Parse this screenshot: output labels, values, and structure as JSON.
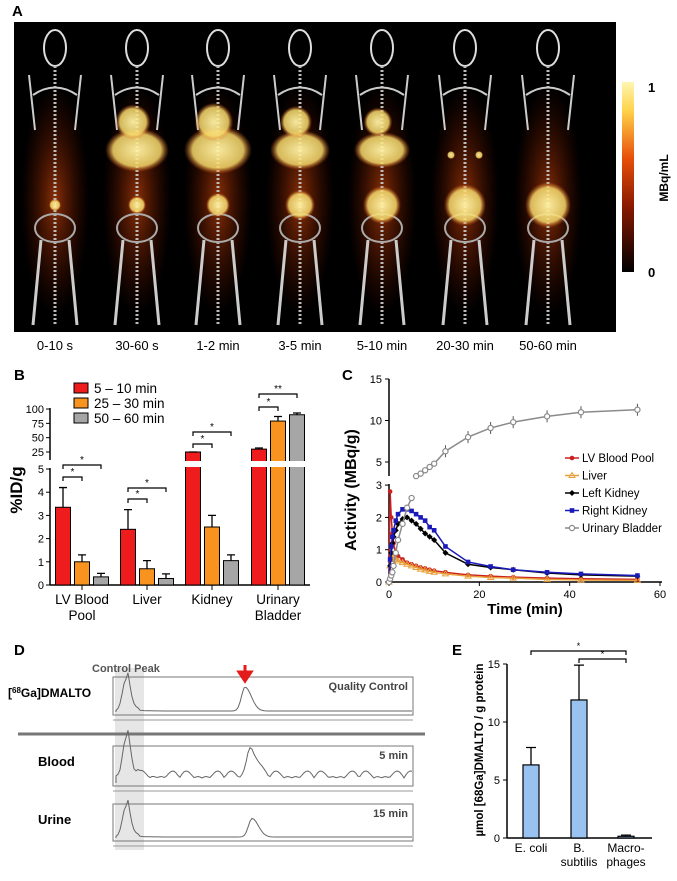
{
  "panels": {
    "a": "A",
    "b": "B",
    "c": "C",
    "d": "D",
    "e": "E"
  },
  "panel_a": {
    "time_labels": [
      "0-10 s",
      "30-60 s",
      "1-2 min",
      "3-5 min",
      "5-10 min",
      "20-30 min",
      "50-60 min"
    ],
    "colorbar": {
      "max": "1",
      "min": "0",
      "unit": "MBq/mL",
      "colors": [
        "#000000",
        "#8b1a00",
        "#e8500a",
        "#ffd34a",
        "#fff6b0"
      ]
    }
  },
  "chart_data": [
    {
      "type": "bar",
      "ylabel": "%ID/g",
      "categories": [
        "LV Blood Pool",
        "Liver",
        "Kidney",
        "Urinary Bladder"
      ],
      "category_lines": [
        [
          "LV Blood",
          "Pool"
        ],
        [
          "Liver"
        ],
        [
          "Kidney"
        ],
        [
          "Urinary",
          "Bladder"
        ]
      ],
      "yticks_lower": [
        "0",
        "1",
        "2",
        "3",
        "4",
        "5"
      ],
      "yticks_upper": [
        "25",
        "50",
        "75",
        "100"
      ],
      "axis_break": [
        5,
        20
      ],
      "series": [
        {
          "name": "5 – 10 min",
          "color": "#ee1c1c",
          "values": [
            3.35,
            2.4,
            17,
            30
          ],
          "errors": [
            0.85,
            0.85,
            3,
            2
          ]
        },
        {
          "name": "25 – 30 min",
          "color": "#f7931e",
          "values": [
            1.0,
            0.7,
            2.5,
            79
          ],
          "errors": [
            0.3,
            0.35,
            0.5,
            8
          ]
        },
        {
          "name": "50 – 60 min",
          "color": "#a6a6a6",
          "values": [
            0.35,
            0.28,
            1.05,
            90
          ],
          "errors": [
            0.15,
            0.2,
            0.25,
            3
          ]
        }
      ],
      "significance": [
        "*",
        "*",
        "*",
        "*",
        "*",
        "*",
        "*",
        "**"
      ],
      "legend": "top-left"
    },
    {
      "type": "line",
      "xlabel": "Time (min)",
      "ylabel": "Activity (MBq/g)",
      "xticks": [
        "0",
        "20",
        "40",
        "60"
      ],
      "yticks_lower": [
        "0",
        "1",
        "2",
        "3"
      ],
      "yticks_upper": [
        "5",
        "10",
        "15"
      ],
      "x": [
        0,
        0.25,
        0.5,
        0.75,
        1,
        1.5,
        2,
        3,
        4,
        5,
        6,
        7,
        8,
        9,
        10,
        12.5,
        17.5,
        22.5,
        27.5,
        35,
        42.5,
        55
      ],
      "series": [
        {
          "name": "LV Blood Pool",
          "color": "#cc1f1f",
          "marker": "circle",
          "values": [
            0,
            2.8,
            2.0,
            1.5,
            1.2,
            0.9,
            0.8,
            0.7,
            0.6,
            0.55,
            0.5,
            0.45,
            0.42,
            0.38,
            0.35,
            0.3,
            0.22,
            0.18,
            0.15,
            0.12,
            0.1,
            0.08
          ]
        },
        {
          "name": "Liver",
          "color": "#e8a13a",
          "marker": "triangle",
          "values": [
            0,
            0.5,
            0.7,
            0.8,
            0.75,
            0.7,
            0.65,
            0.6,
            0.55,
            0.5,
            0.45,
            0.4,
            0.37,
            0.33,
            0.3,
            0.25,
            0.18,
            0.14,
            0.12,
            0.08,
            0.06,
            0.05
          ]
        },
        {
          "name": "Left Kidney",
          "color": "#000000",
          "marker": "diamond",
          "values": [
            0,
            0.5,
            0.9,
            1.2,
            1.4,
            1.6,
            1.8,
            1.95,
            2.0,
            1.9,
            1.8,
            1.65,
            1.5,
            1.4,
            1.3,
            0.9,
            0.55,
            0.45,
            0.38,
            0.28,
            0.22,
            0.18
          ]
        },
        {
          "name": "Right Kidney",
          "color": "#1a1ab8",
          "marker": "square",
          "values": [
            0,
            0.7,
            1.1,
            1.4,
            1.6,
            1.9,
            2.1,
            2.25,
            2.25,
            2.2,
            2.1,
            2.0,
            1.9,
            1.7,
            1.6,
            1.1,
            0.62,
            0.48,
            0.38,
            0.3,
            0.25,
            0.2
          ]
        },
        {
          "name": "Urinary  Bladder",
          "color": "#8a8a8a",
          "marker": "open-circle",
          "values": [
            0,
            0.1,
            0.2,
            0.3,
            0.5,
            0.9,
            1.3,
            1.8,
            2.3,
            2.6,
            3.3,
            3.6,
            4.0,
            4.4,
            4.8,
            6.3,
            8.0,
            9.1,
            9.8,
            10.5,
            11.0,
            11.3
          ]
        }
      ],
      "xlim": [
        0,
        60
      ],
      "legend": "right"
    },
    {
      "type": "bar",
      "ylabel": "µmol [68Ga]DMALTO / g protein",
      "categories": [
        "E. coli",
        "B. subtilis",
        "Macrophages"
      ],
      "category_lines": [
        [
          "E. coli"
        ],
        [
          "B.",
          "subtilis"
        ],
        [
          "Macro-",
          "phages"
        ]
      ],
      "yticks": [
        "0",
        "5",
        "10",
        "15"
      ],
      "ylim": [
        0,
        15
      ],
      "color": "#99c2f0",
      "values": [
        6.3,
        11.9,
        0.15
      ],
      "errors": [
        1.5,
        3.0,
        0.1
      ],
      "significance": [
        "*",
        "*"
      ]
    }
  ],
  "panel_d": {
    "header": "Control Peak",
    "rows": [
      {
        "label_pre": "[",
        "label_sup": "68",
        "label_post": "Ga]DMALTO",
        "tag": "Quality Control"
      },
      {
        "label_pre": "Blood",
        "label_sup": "",
        "label_post": "",
        "tag": "5 min"
      },
      {
        "label_pre": "Urine",
        "label_sup": "",
        "label_post": "",
        "tag": "15 min"
      }
    ],
    "arrow_color": "#e31b1b"
  }
}
